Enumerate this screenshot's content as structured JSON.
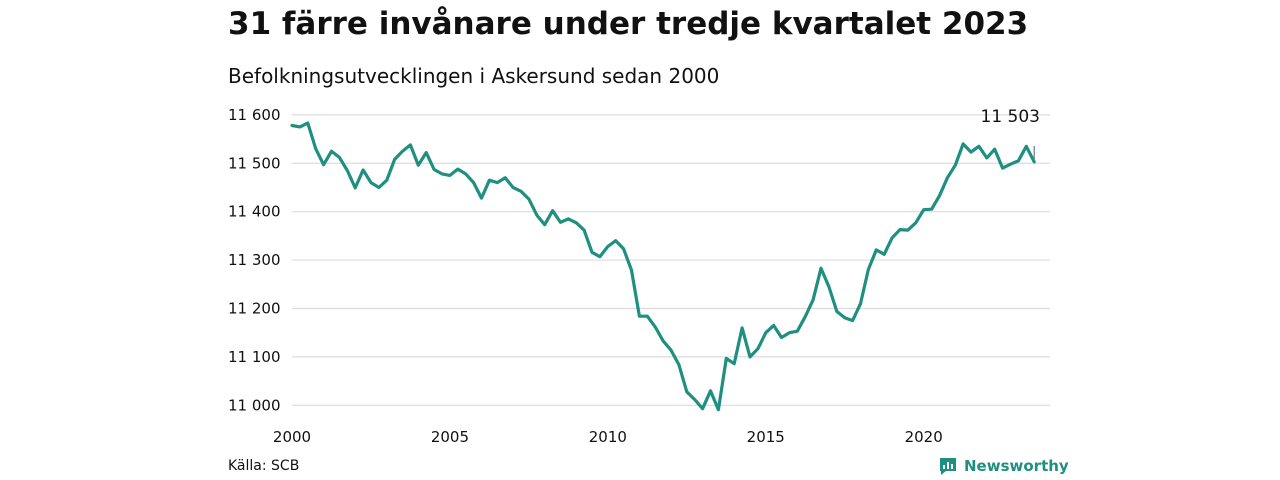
{
  "title": "31 färre invånare under tredje kvartalet 2023",
  "subtitle": "Befolkningsutvecklingen i Askersund sedan 2000",
  "source": "Källa: SCB",
  "brand": {
    "name": "Newsworthy",
    "icon": "newsworthy-logo-icon"
  },
  "colors": {
    "line": "#1f8f80",
    "grid": "#dcdcdc",
    "text": "#111111"
  },
  "chart_data": {
    "type": "line",
    "title": "31 färre invånare under tredje kvartalet 2023",
    "subtitle": "Befolkningsutvecklingen i Askersund sedan 2000",
    "xlim": [
      2000,
      2024
    ],
    "ylim": [
      10980,
      11610
    ],
    "x_ticks": [
      2000,
      2005,
      2010,
      2015,
      2020
    ],
    "x_tick_labels": [
      "2000",
      "2005",
      "2010",
      "2015",
      "2020"
    ],
    "y_ticks": [
      11000,
      11100,
      11200,
      11300,
      11400,
      11500,
      11600
    ],
    "y_tick_labels": [
      "11 000",
      "11 100",
      "11 200",
      "11 300",
      "11 400",
      "11 500",
      "11 600"
    ],
    "grid": "horizontal",
    "end_label": "11 503",
    "series": [
      {
        "x": [
          2000.0,
          2000.25,
          2000.5,
          2000.75,
          2001.0,
          2001.25,
          2001.5,
          2001.75,
          2002.0,
          2002.25,
          2002.5,
          2002.75,
          2003.0,
          2003.25,
          2003.5,
          2003.75,
          2004.0,
          2004.25,
          2004.5,
          2004.75,
          2005.0,
          2005.25,
          2005.5,
          2005.75,
          2006.0,
          2006.25,
          2006.5,
          2006.75,
          2007.0,
          2007.25,
          2007.5,
          2007.75,
          2008.0,
          2008.25,
          2008.5,
          2008.75,
          2009.0,
          2009.25,
          2009.5,
          2009.75,
          2010.0,
          2010.25,
          2010.5,
          2010.75,
          2011.0,
          2011.25,
          2011.5,
          2011.75,
          2012.0,
          2012.25,
          2012.5,
          2012.75,
          2013.0,
          2013.25,
          2013.5,
          2013.75,
          2014.0,
          2014.25,
          2014.5,
          2014.75,
          2015.0,
          2015.25,
          2015.5,
          2015.75,
          2016.0,
          2016.25,
          2016.5,
          2016.75,
          2017.0,
          2017.25,
          2017.5,
          2017.75,
          2018.0,
          2018.25,
          2018.5,
          2018.75,
          2019.0,
          2019.25,
          2019.5,
          2019.75,
          2020.0,
          2020.25,
          2020.5,
          2020.75,
          2021.0,
          2021.25,
          2021.5,
          2021.75,
          2022.0,
          2022.25,
          2022.5,
          2022.75,
          2023.0,
          2023.25,
          2023.5
        ],
        "values": [
          11578,
          11575,
          11583,
          11530,
          11497,
          11525,
          11512,
          11485,
          11449,
          11486,
          11460,
          11450,
          11465,
          11508,
          11525,
          11538,
          11496,
          11522,
          11487,
          11478,
          11475,
          11488,
          11478,
          11460,
          11428,
          11465,
          11460,
          11470,
          11450,
          11442,
          11426,
          11393,
          11373,
          11402,
          11378,
          11385,
          11377,
          11362,
          11316,
          11307,
          11328,
          11340,
          11323,
          11279,
          11184,
          11184,
          11162,
          11133,
          11114,
          11084,
          11028,
          11012,
          10993,
          11030,
          10991,
          11097,
          11086,
          11160,
          11100,
          11117,
          11150,
          11165,
          11140,
          11150,
          11153,
          11183,
          11218,
          11283,
          11245,
          11194,
          11181,
          11175,
          11210,
          11281,
          11321,
          11312,
          11346,
          11363,
          11362,
          11377,
          11404,
          11405,
          11433,
          11470,
          11496,
          11540,
          11523,
          11535,
          11511,
          11529,
          11490,
          11498,
          11505,
          11535,
          11503
        ]
      }
    ]
  }
}
